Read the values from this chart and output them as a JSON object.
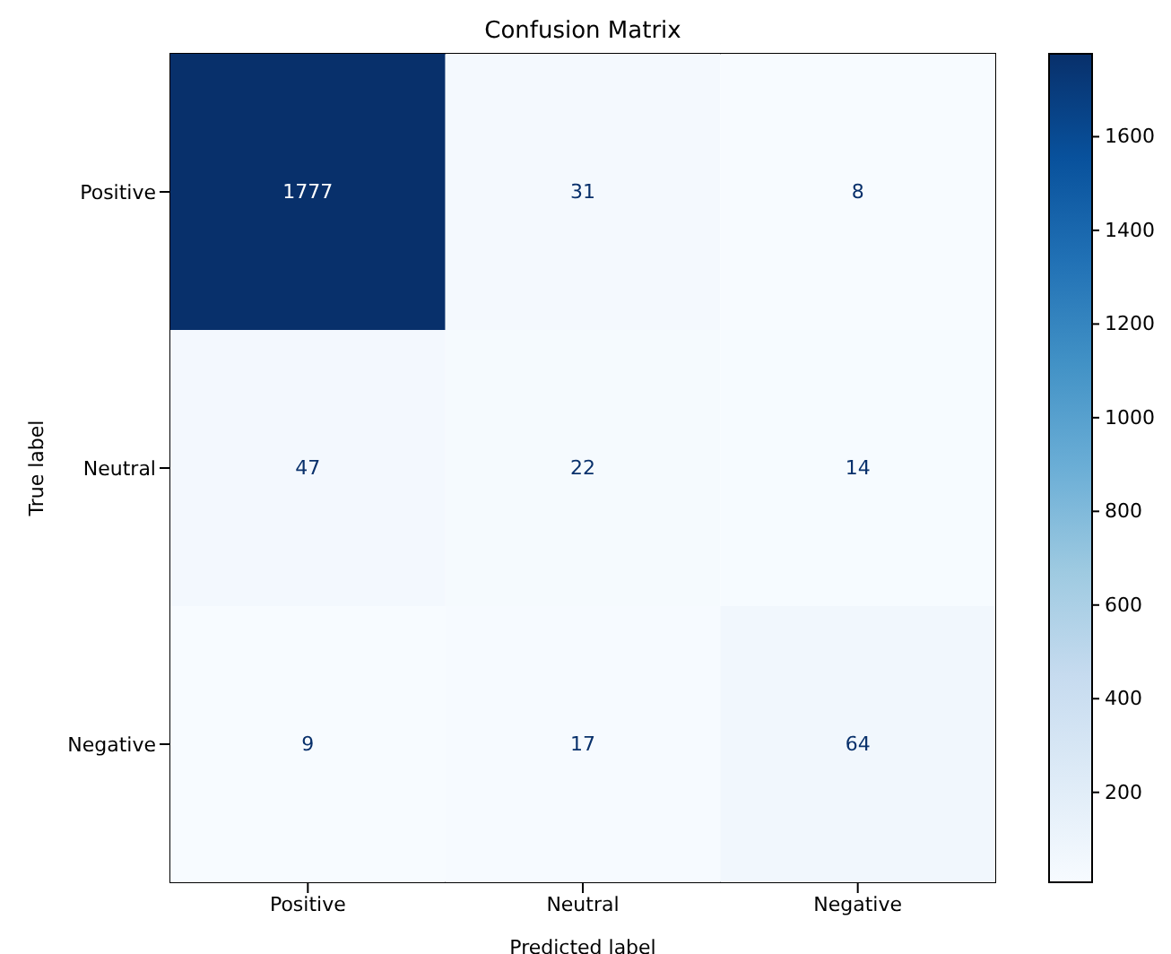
{
  "chart_data": {
    "type": "heatmap",
    "title": "Confusion Matrix",
    "xlabel": "Predicted label",
    "ylabel": "True label",
    "categories": [
      "Positive",
      "Neutral",
      "Negative"
    ],
    "y_categories": [
      "Positive",
      "Neutral",
      "Negative"
    ],
    "cells": [
      [
        1777,
        31,
        8
      ],
      [
        47,
        22,
        14
      ],
      [
        9,
        17,
        64
      ]
    ],
    "clim": [
      8,
      1777
    ],
    "cticks": [
      200,
      400,
      600,
      800,
      1000,
      1200,
      1400,
      1600
    ],
    "data_labels": true
  }
}
